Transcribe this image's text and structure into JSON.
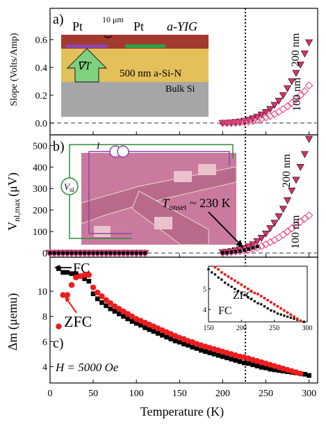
{
  "chart_data": [
    {
      "type": "scatter",
      "panel_label": "a)",
      "ylabel": "Slope (Volts/Amp)",
      "xlim": [
        0,
        310
      ],
      "yticks": [
        "0.0",
        "0.2",
        "0.4",
        "0.6"
      ],
      "series_labels": [
        "200 nm",
        "100 nm"
      ],
      "series": [
        {
          "name": "200 nm",
          "marker": "triangle-down-filled",
          "color": "#d6336c",
          "x": [
            200,
            205,
            210,
            215,
            220,
            225,
            230,
            235,
            240,
            245,
            250,
            255,
            260,
            265,
            270,
            275,
            280,
            285,
            290,
            295,
            300
          ],
          "y": [
            0.0,
            0.0,
            0.003,
            0.006,
            0.01,
            0.015,
            0.022,
            0.032,
            0.045,
            0.06,
            0.078,
            0.1,
            0.13,
            0.16,
            0.2,
            0.25,
            0.3,
            0.36,
            0.42,
            0.5,
            0.58
          ]
        },
        {
          "name": "100 nm",
          "marker": "diamond-open",
          "color": "#e8508f",
          "x": [
            200,
            205,
            210,
            215,
            220,
            225,
            230,
            235,
            240,
            245,
            250,
            255,
            260,
            265,
            270,
            275,
            280,
            285,
            290,
            295,
            300
          ],
          "y": [
            0.0,
            0.0,
            0.0,
            0.002,
            0.004,
            0.007,
            0.01,
            0.015,
            0.022,
            0.03,
            0.04,
            0.05,
            0.065,
            0.08,
            0.1,
            0.12,
            0.145,
            0.17,
            0.2,
            0.23,
            0.27
          ]
        }
      ],
      "inset_labels": {
        "spacing": "10 μm",
        "pt_left": "Pt",
        "pt_right": "Pt",
        "yig": "a-YIG",
        "grad": "∇T",
        "sin": "500 nm a-Si-N",
        "si": "Bulk Si"
      }
    },
    {
      "type": "scatter",
      "panel_label": "b)",
      "ylabel": "V",
      "ylabel_sub": "nl,max",
      "ylabel_unit": "(μV)",
      "xlim": [
        0,
        310
      ],
      "ylim": [
        0,
        540
      ],
      "yticks": [
        0,
        100,
        200,
        300,
        400,
        500
      ],
      "series_labels": [
        "200 nm",
        "100 nm"
      ],
      "annotation": "T",
      "annotation_sub": "onset",
      "annotation_rest": " ~ 230 K",
      "inset_labels": {
        "current": "I",
        "vnl": "V",
        "vnl_sub": "nl"
      },
      "series": [
        {
          "name": "200 nm",
          "marker": "triangle-down-filled",
          "color": "#d6336c",
          "x": [
            0,
            5,
            10,
            15,
            20,
            25,
            30,
            35,
            40,
            45,
            50,
            55,
            60,
            65,
            70,
            75,
            80,
            85,
            90,
            95,
            100,
            105,
            110,
            200,
            205,
            210,
            215,
            220,
            225,
            230,
            235,
            240,
            245,
            250,
            255,
            260,
            265,
            270,
            275,
            280,
            285,
            290,
            295,
            300
          ],
          "y": [
            0,
            0,
            0,
            0,
            0,
            0,
            0,
            0,
            0,
            0,
            0,
            0,
            0,
            0,
            0,
            0,
            0,
            0,
            0,
            0,
            0,
            0,
            0,
            3,
            5,
            8,
            12,
            17,
            22,
            30,
            40,
            55,
            70,
            90,
            115,
            140,
            170,
            205,
            245,
            290,
            340,
            400,
            460,
            530
          ]
        },
        {
          "name": "100 nm",
          "marker": "diamond-open",
          "color": "#e8508f",
          "x": [
            0,
            5,
            10,
            15,
            20,
            25,
            30,
            35,
            40,
            45,
            50,
            55,
            60,
            65,
            70,
            75,
            80,
            85,
            90,
            95,
            100,
            105,
            110,
            200,
            205,
            210,
            215,
            220,
            225,
            230,
            235,
            240,
            245,
            250,
            255,
            260,
            265,
            270,
            275,
            280,
            285,
            290,
            295,
            300
          ],
          "y": [
            0,
            0,
            0,
            0,
            0,
            0,
            0,
            0,
            0,
            0,
            0,
            0,
            0,
            0,
            0,
            0,
            0,
            0,
            0,
            0,
            0,
            0,
            0,
            2,
            3,
            5,
            7,
            9,
            12,
            15,
            20,
            25,
            32,
            40,
            50,
            60,
            72,
            85,
            100,
            115,
            130,
            145,
            160,
            175
          ]
        },
        {
          "name": "black",
          "marker": "square-filled",
          "color": "#000000",
          "x": [
            0,
            5,
            10,
            15,
            20,
            25,
            30,
            35,
            40,
            45,
            50,
            55,
            60,
            65,
            70,
            75,
            80,
            85,
            90,
            95,
            100,
            105,
            110,
            200,
            205,
            210,
            215,
            220,
            225,
            230,
            235,
            240
          ],
          "y": [
            0,
            0,
            0,
            0,
            0,
            0,
            0,
            0,
            0,
            0,
            0,
            0,
            0,
            0,
            0,
            0,
            0,
            0,
            0,
            0,
            0,
            0,
            0,
            2,
            3,
            5,
            7,
            10,
            14,
            18,
            24,
            30
          ]
        }
      ]
    },
    {
      "type": "scatter",
      "panel_label": "c)",
      "xlabel": "Temperature (K)",
      "ylabel": "Δm (μemu)",
      "xlim": [
        0,
        310
      ],
      "ylim": [
        2.7,
        12.6
      ],
      "xticks": [
        0,
        50,
        100,
        150,
        200,
        250,
        300
      ],
      "yticks": [
        4,
        6,
        8,
        10
      ],
      "field_label": "H = 5000 Oe",
      "labels": {
        "fc": "FC",
        "zfc": "ZFC"
      },
      "series": [
        {
          "name": "FC",
          "marker": "square-filled",
          "color": "#000000",
          "x": [
            10,
            15,
            20,
            25,
            30,
            35,
            40,
            45,
            50,
            55,
            60,
            65,
            70,
            75,
            80,
            85,
            90,
            95,
            100,
            105,
            110,
            115,
            120,
            125,
            130,
            135,
            140,
            145,
            150,
            155,
            160,
            165,
            170,
            175,
            180,
            185,
            190,
            195,
            200,
            205,
            210,
            215,
            220,
            225,
            230,
            235,
            240,
            245,
            250,
            255,
            260,
            265,
            270,
            275,
            280,
            285,
            290,
            295,
            300
          ],
          "y": [
            11.8,
            11.5,
            11.5,
            11.4,
            11.4,
            11.2,
            11.0,
            10.8,
            9.8,
            9.4,
            9.1,
            8.85,
            8.6,
            8.4,
            8.2,
            8.0,
            7.8,
            7.6,
            7.45,
            7.3,
            7.1,
            6.95,
            6.8,
            6.65,
            6.5,
            6.35,
            6.2,
            6.05,
            5.95,
            5.8,
            5.7,
            5.55,
            5.45,
            5.3,
            5.2,
            5.1,
            5.0,
            4.9,
            4.8,
            4.7,
            4.6,
            4.5,
            4.4,
            4.3,
            4.25,
            4.15,
            4.05,
            3.95,
            3.9,
            3.8,
            3.75,
            3.7,
            3.65,
            3.6,
            3.55,
            3.5,
            3.45,
            3.4,
            3.3
          ]
        },
        {
          "name": "ZFC",
          "marker": "circle-filled",
          "color": "#ee1c1c",
          "x": [
            10,
            15,
            20,
            25,
            30,
            35,
            40,
            45,
            50,
            55,
            60,
            65,
            70,
            75,
            80,
            85,
            90,
            95,
            100,
            105,
            110,
            115,
            120,
            125,
            130,
            135,
            140,
            145,
            150,
            155,
            160,
            165,
            170,
            175,
            180,
            185,
            190,
            195,
            200,
            205,
            210,
            215,
            220,
            225,
            230,
            235,
            240,
            245,
            250,
            255,
            260,
            265,
            270,
            275,
            280,
            285,
            290
          ],
          "y": [
            7.2,
            9.7,
            9.7,
            10.5,
            11.1,
            11.2,
            11.3,
            11.3,
            10.3,
            9.9,
            9.6,
            9.3,
            9.05,
            8.8,
            8.6,
            8.4,
            8.2,
            8.0,
            7.8,
            7.65,
            7.5,
            7.35,
            7.2,
            7.05,
            6.9,
            6.75,
            6.6,
            6.45,
            6.3,
            6.2,
            6.05,
            5.95,
            5.8,
            5.7,
            5.6,
            5.5,
            5.4,
            5.3,
            5.2,
            5.1,
            5.0,
            4.9,
            4.8,
            4.75,
            4.65,
            4.55,
            4.45,
            4.35,
            4.25,
            4.15,
            4.05,
            3.95,
            3.85,
            3.75,
            3.65,
            3.55,
            3.45
          ]
        }
      ],
      "inset": {
        "xlim": [
          150,
          300
        ],
        "ylim": [
          3.4,
          6.1
        ],
        "xticks": [
          150,
          200,
          250,
          300
        ],
        "yticks": [
          4,
          5
        ],
        "labels": {
          "fc": "FC",
          "zfc": "ZFC"
        }
      }
    }
  ]
}
